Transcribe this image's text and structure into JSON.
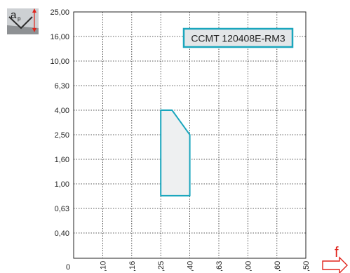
{
  "chart_data": {
    "type": "area",
    "title": "",
    "xlabel": "f",
    "ylabel": "ap",
    "annotation": "CCMT 120408E-RM3",
    "y_ticks": [
      "0,40",
      "0,63",
      "1,00",
      "1,60",
      "2,50",
      "4,00",
      "6,30",
      "10,00",
      "16,00",
      "25,00"
    ],
    "x_ticks": [
      "0",
      ",10",
      ",16",
      ",25",
      ",40",
      ",63",
      ",00",
      ",60",
      ",50"
    ],
    "x_tick_values": [
      0,
      0.1,
      0.16,
      0.25,
      0.4,
      0.63,
      1.0,
      1.6,
      2.5
    ],
    "region": {
      "x": [
        0.25,
        0.3,
        0.4,
        0.4,
        0.25
      ],
      "y": [
        4.0,
        4.0,
        2.5,
        0.8,
        0.8
      ]
    },
    "grid": true,
    "colors": {
      "region_stroke": "#1aa6bd",
      "region_fill": "#eef0f1",
      "box_stroke": "#1aa6bd",
      "box_fill": "#e3e6e8",
      "arrow": "#e0231b"
    },
    "icon": "depth-of-cut-icon"
  }
}
